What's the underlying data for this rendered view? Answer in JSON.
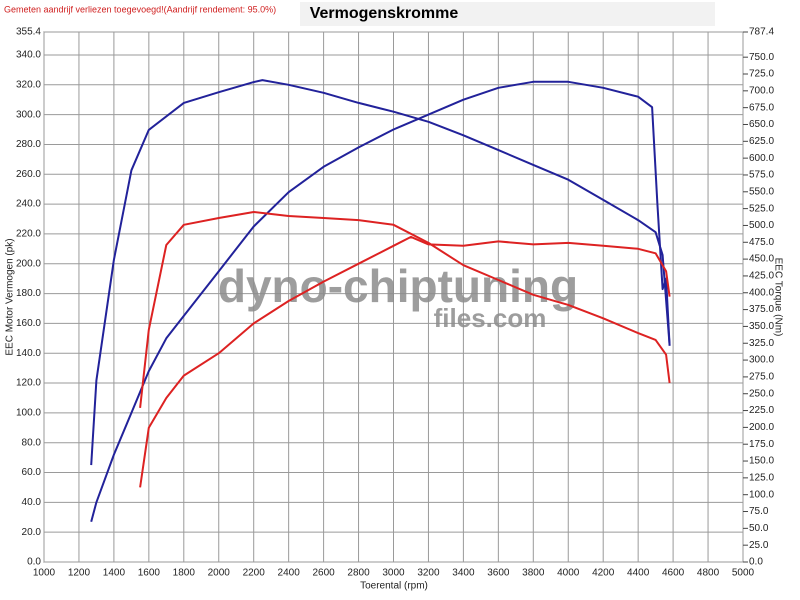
{
  "chart_data": {
    "type": "line",
    "title": "Vermogenskromme",
    "subtitle": "Gemeten aandrijf verliezen toegevoegd!(Aandrijf rendement: 95.0%)",
    "x_label": "Toerental (rpm)",
    "y_label": "EEC Motor Vermogen (pk)",
    "y2_label": "EEC Torque (Nm)",
    "watermark": [
      "dyno-chiptuning",
      "files.com"
    ],
    "grid": true,
    "xlim": [
      1000,
      5000
    ],
    "xticks": [
      1000,
      1200,
      1400,
      1600,
      1800,
      2000,
      2200,
      2400,
      2600,
      2800,
      3000,
      3200,
      3400,
      3600,
      3800,
      4000,
      4200,
      4400,
      4600,
      4800,
      5000
    ],
    "ylim": [
      0,
      355.4
    ],
    "yticks": [
      {
        "value": 0,
        "label": "0.0"
      },
      {
        "value": 20,
        "label": "20.0"
      },
      {
        "value": 40,
        "label": "40.0"
      },
      {
        "value": 60,
        "label": "60.0"
      },
      {
        "value": 80,
        "label": "80.0"
      },
      {
        "value": 100,
        "label": "100.0"
      },
      {
        "value": 120,
        "label": "120.0"
      },
      {
        "value": 140,
        "label": "140.0"
      },
      {
        "value": 160,
        "label": "160.0"
      },
      {
        "value": 180,
        "label": "180.0"
      },
      {
        "value": 200,
        "label": "200.0"
      },
      {
        "value": 220,
        "label": "220.0"
      },
      {
        "value": 240,
        "label": "240.0"
      },
      {
        "value": 260,
        "label": "260.0"
      },
      {
        "value": 280,
        "label": "280.0"
      },
      {
        "value": 300,
        "label": "300.0"
      },
      {
        "value": 320,
        "label": "320.0"
      },
      {
        "value": 340,
        "label": "340.0"
      },
      355.4
    ],
    "y2lim": [
      0,
      787.4
    ],
    "y2ticks": [
      {
        "value": 0,
        "label": "0.0"
      },
      {
        "value": 25,
        "label": "25.0"
      },
      {
        "value": 50,
        "label": "50.0"
      },
      {
        "value": 75,
        "label": "75.0"
      },
      {
        "value": 100,
        "label": "100.0"
      },
      {
        "value": 125,
        "label": "125.0"
      },
      {
        "value": 150,
        "label": "150.0"
      },
      {
        "value": 175,
        "label": "175.0"
      },
      {
        "value": 200,
        "label": "200.0"
      },
      {
        "value": 225,
        "label": "225.0"
      },
      {
        "value": 250,
        "label": "250.0"
      },
      {
        "value": 275,
        "label": "275.0"
      },
      {
        "value": 300,
        "label": "300.0"
      },
      {
        "value": 325,
        "label": "325.0"
      },
      {
        "value": 350,
        "label": "350.0"
      },
      {
        "value": 375,
        "label": "375.0"
      },
      {
        "value": 400,
        "label": "400.0"
      },
      {
        "value": 425,
        "label": "425.0"
      },
      {
        "value": 450,
        "label": "450.0"
      },
      {
        "value": 475,
        "label": "475.0"
      },
      {
        "value": 500,
        "label": "500.0"
      },
      {
        "value": 525,
        "label": "525.0"
      },
      {
        "value": 550,
        "label": "550.0"
      },
      {
        "value": 575,
        "label": "575.0"
      },
      {
        "value": 600,
        "label": "600.0"
      },
      {
        "value": 625,
        "label": "625.0"
      },
      {
        "value": 650,
        "label": "650.0"
      },
      {
        "value": 675,
        "label": "675.0"
      },
      {
        "value": 700,
        "label": "700.0"
      },
      {
        "value": 725,
        "label": "725.0"
      },
      {
        "value": 750,
        "label": "750.0"
      },
      787.4
    ],
    "series": [
      {
        "color": "#22229a",
        "axis": "y",
        "x": [
          1270,
          1300,
          1400,
          1500,
          1600,
          1700,
          1800,
          2000,
          2200,
          2400,
          2600,
          2800,
          3000,
          3200,
          3400,
          3600,
          3800,
          4000,
          4200,
          4400,
          4480,
          4510,
          4540,
          4560,
          4580
        ],
        "values": [
          27,
          40,
          72,
          100,
          128,
          150,
          165,
          195,
          225,
          248,
          265,
          278,
          290,
          300,
          310,
          318,
          322,
          322,
          318,
          312,
          305,
          240,
          183,
          190,
          145
        ]
      },
      {
        "color": "#22229a",
        "axis": "y2",
        "x": [
          1270,
          1300,
          1400,
          1500,
          1600,
          1800,
          2000,
          2200,
          2250,
          2400,
          2600,
          2800,
          3000,
          3200,
          3400,
          3600,
          3800,
          4000,
          4200,
          4400,
          4500,
          4540,
          4560,
          4580
        ],
        "values": [
          144,
          270,
          449,
          582,
          642,
          682,
          698,
          713,
          716,
          709,
          697,
          682,
          669,
          654,
          634,
          612,
          590,
          568,
          538,
          508,
          490,
          456,
          389,
          322
        ]
      },
      {
        "color": "#dd2222",
        "axis": "y",
        "x": [
          1550,
          1600,
          1700,
          1800,
          2000,
          2200,
          2400,
          2600,
          2800,
          3000,
          3100,
          3200,
          3400,
          3600,
          3800,
          4000,
          4200,
          4400,
          4500,
          4560,
          4580
        ],
        "values": [
          50,
          90,
          110,
          125,
          140,
          160,
          175,
          188,
          200,
          212,
          218,
          213,
          212,
          215,
          213,
          214,
          212,
          210,
          207,
          195,
          178
        ]
      },
      {
        "color": "#dd2222",
        "axis": "y2",
        "x": [
          1550,
          1600,
          1700,
          1800,
          2000,
          2200,
          2400,
          2600,
          2800,
          3000,
          3200,
          3400,
          3600,
          3800,
          4000,
          4200,
          4400,
          4500,
          4560,
          4580
        ],
        "values": [
          229,
          345,
          471,
          501,
          511,
          520,
          514,
          511,
          508,
          501,
          474,
          441,
          419,
          397,
          382,
          362,
          340,
          330,
          308,
          266
        ]
      }
    ]
  }
}
